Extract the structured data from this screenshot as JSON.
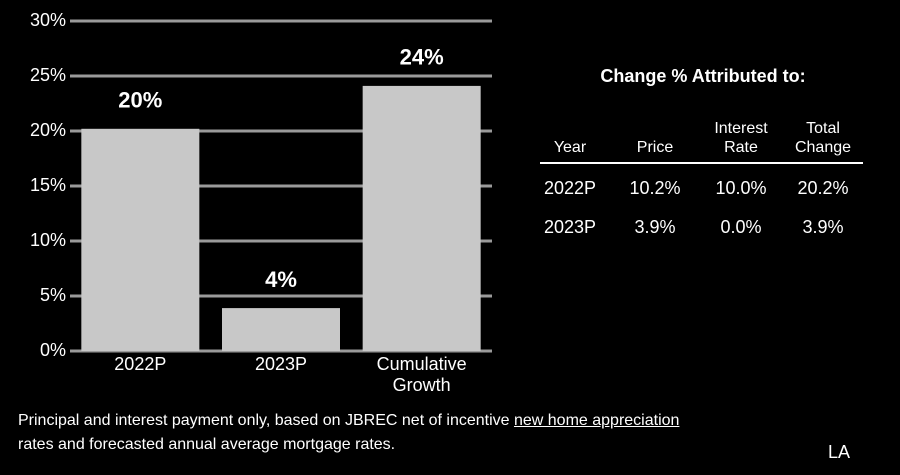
{
  "chart_data": {
    "type": "bar",
    "categories": [
      "2022P",
      "2023P",
      "Cumulative Growth"
    ],
    "values": [
      20.2,
      3.9,
      24.1
    ],
    "value_labels": [
      "20%",
      "4%",
      "24%"
    ],
    "color": "#c8c8c8",
    "ylim": [
      0,
      30
    ],
    "yticks": [
      {
        "value": 0,
        "label": "0%"
      },
      {
        "value": 5,
        "label": "5%"
      },
      {
        "value": 10,
        "label": "10%"
      },
      {
        "value": 15,
        "label": "15%"
      },
      {
        "value": 20,
        "label": "20%"
      },
      {
        "value": 25,
        "label": "25%"
      },
      {
        "value": 30,
        "label": "30%"
      }
    ],
    "grid": true
  },
  "table": {
    "title": "Change % Attributed to:",
    "headers": [
      "Year",
      "Price",
      "Interest Rate",
      "Total Change"
    ],
    "rows": [
      [
        "2022P",
        "10.2%",
        "10.0%",
        "20.2%"
      ],
      [
        "2023P",
        "3.9%",
        "0.0%",
        "3.9%"
      ]
    ]
  },
  "footnote": {
    "text_before": "Principal and interest payment only, based on JBREC net of incentive ",
    "link": "new home appreciation",
    "text_after": "rates and forecasted annual average mortgage rates."
  },
  "corner_label": "LA"
}
